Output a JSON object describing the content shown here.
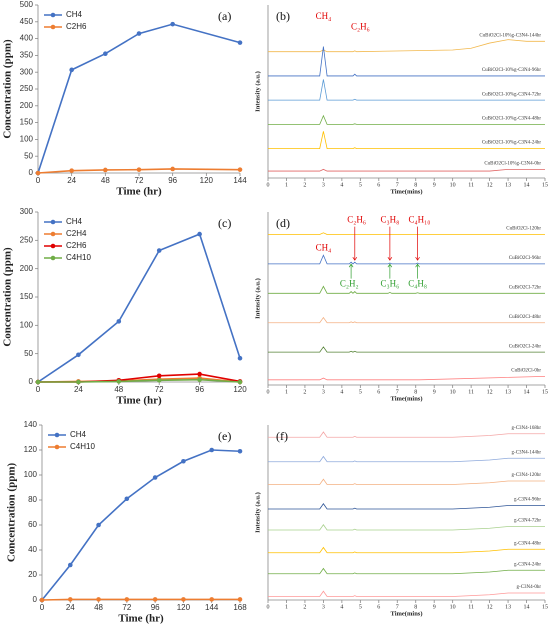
{
  "chart_data": [
    {
      "type": "line",
      "panel_label": "(a)",
      "x_label": "Time (hr)",
      "y_label": "Concentration (ppm)",
      "x": [
        0,
        24,
        48,
        72,
        96,
        144
      ],
      "series": [
        {
          "name": "CH4",
          "color": "#4472c4",
          "values": [
            0,
            307,
            355,
            415,
            443,
            388
          ]
        },
        {
          "name": "C2H6",
          "color": "#ed7d31",
          "values": [
            0,
            7,
            9,
            10,
            12,
            10
          ]
        }
      ],
      "xlim": [
        0,
        144
      ],
      "xticks": [
        0,
        24,
        48,
        72,
        96,
        120,
        144
      ],
      "ylim": [
        0,
        500
      ],
      "yticks": [
        0,
        50,
        100,
        150,
        200,
        250,
        300,
        350,
        400,
        450,
        500
      ],
      "markers": true,
      "legend": "upper-left"
    },
    {
      "type": "line",
      "panel_label": "(b)",
      "x_label": "Time(mins)",
      "y_label": "Intensity (a.u.)",
      "x": [
        0,
        2.8,
        3,
        3.2,
        4.6,
        4.7,
        4.8,
        10,
        11,
        12,
        13,
        14,
        15
      ],
      "series": [
        {
          "name": "CuBiO2Cl-10%g-C3N4-144hr",
          "color": "#f2b94f",
          "values": [
            73,
            73,
            74,
            73,
            73,
            73.5,
            73,
            74,
            75,
            78,
            80,
            79,
            79
          ]
        },
        {
          "name": "CuBiO2Cl-10%g-C3N4-96hr",
          "color": "#4472c4",
          "values": [
            59,
            59,
            76,
            59,
            59,
            60,
            59,
            59,
            59,
            59,
            59,
            59,
            59
          ]
        },
        {
          "name": "CuBiO2Cl-10%g-C3N4-72hr",
          "color": "#5b9bd5",
          "values": [
            45,
            45,
            57,
            45,
            45,
            45.5,
            45,
            45,
            45,
            45,
            45,
            45,
            45
          ]
        },
        {
          "name": "CuBiO2Cl-10%g-C3N4-48hr",
          "color": "#70ad47",
          "values": [
            31,
            31,
            36,
            31,
            31,
            31.3,
            31,
            31,
            31,
            31,
            31,
            31,
            31
          ]
        },
        {
          "name": "CuBiO2Cl-10%g-C3N4-24hr",
          "color": "#ffc000",
          "values": [
            17,
            17,
            27,
            17,
            17,
            17.5,
            17,
            17,
            17,
            17,
            17,
            17,
            17
          ]
        },
        {
          "name": "CuBiO2Cl-10%g-C3N4-0hr",
          "color": "#e06666",
          "values": [
            4,
            4,
            5,
            4,
            4,
            4,
            4,
            4,
            4,
            4,
            5,
            5,
            5
          ]
        }
      ],
      "xlim": [
        0,
        15
      ],
      "xticks": [
        0,
        1,
        2,
        3,
        4,
        5,
        6,
        7,
        8,
        9,
        10,
        11,
        12,
        13,
        14,
        15
      ],
      "ylim": [
        0,
        100
      ],
      "markers": false,
      "legend": "inline",
      "annotations": [
        {
          "text": "CH₄",
          "color": "#e00000"
        },
        {
          "text": "C₂H₆",
          "color": "#e00000"
        }
      ]
    },
    {
      "type": "line",
      "panel_label": "(c)",
      "x_label": "Time (hr)",
      "y_label": "Concentration (ppm)",
      "x": [
        0,
        24,
        48,
        72,
        96,
        120
      ],
      "series": [
        {
          "name": "CH4",
          "color": "#4472c4",
          "values": [
            0,
            48,
            107,
            232,
            261,
            42
          ]
        },
        {
          "name": "C2H4",
          "color": "#ed7d31",
          "values": [
            0,
            1,
            2,
            5,
            7,
            0
          ]
        },
        {
          "name": "C2H6",
          "color": "#e00000",
          "values": [
            0,
            0,
            3,
            11,
            14,
            1
          ]
        },
        {
          "name": "C4H10",
          "color": "#70ad47",
          "values": [
            0,
            0,
            1,
            3,
            4,
            0
          ]
        }
      ],
      "xlim": [
        0,
        120
      ],
      "xticks": [
        0,
        24,
        48,
        72,
        96,
        120
      ],
      "ylim": [
        0,
        300
      ],
      "yticks": [
        0,
        50,
        100,
        150,
        200,
        250,
        300
      ],
      "markers": true,
      "legend": "upper-left"
    },
    {
      "type": "line",
      "panel_label": "(d)",
      "x_label": "Time(mins)",
      "y_label": "Intensity (a.u.)",
      "x": [
        0,
        2.8,
        3,
        3.2,
        4.4,
        4.5,
        4.6,
        4.7,
        4.8,
        6.5,
        6.6,
        6.7,
        8,
        8.1,
        8.2,
        15
      ],
      "series": [
        {
          "name": "CuBiO2Cl-120hr",
          "color": "#ffc000",
          "values": [
            87,
            87,
            88,
            87,
            87,
            87,
            87,
            87,
            87,
            87,
            87,
            87,
            87,
            87,
            87,
            87
          ]
        },
        {
          "name": "CuBiO2Cl-96hr",
          "color": "#4472c4",
          "values": [
            70,
            70,
            75,
            70,
            70,
            71,
            70,
            71,
            70,
            70,
            70.5,
            70,
            70,
            70.5,
            70,
            70
          ]
        },
        {
          "name": "CuBiO2Cl-72hr",
          "color": "#70ad47",
          "values": [
            53,
            53,
            57,
            53,
            53,
            54,
            53,
            54,
            53,
            53,
            53.5,
            53,
            53,
            53.3,
            53,
            53
          ]
        },
        {
          "name": "CuBiO2Cl-48hr",
          "color": "#f4b183",
          "values": [
            36,
            36,
            39,
            36,
            36,
            36.5,
            36,
            36.5,
            36,
            36,
            36,
            36,
            36,
            36,
            36,
            36
          ]
        },
        {
          "name": "CuBiO2Cl-24hr",
          "color": "#548235",
          "values": [
            19,
            19,
            22,
            19,
            19,
            19.5,
            19,
            19.5,
            19,
            19,
            19,
            19,
            19,
            19,
            19,
            19
          ]
        },
        {
          "name": "CuBiO2Cl-0hr",
          "color": "#ff7f7f",
          "values": [
            3,
            3,
            4,
            3,
            3,
            3,
            3,
            3,
            3,
            3,
            3,
            3,
            3,
            3,
            3,
            5
          ]
        }
      ],
      "xlim": [
        0,
        15
      ],
      "xticks": [
        0,
        1,
        2,
        3,
        4,
        5,
        6,
        7,
        8,
        9,
        10,
        11,
        12,
        13,
        14,
        15
      ],
      "ylim": [
        0,
        100
      ],
      "markers": false,
      "legend": "inline",
      "annotations": [
        {
          "text": "CH₄",
          "color": "#e00000"
        },
        {
          "text": "C₂H₆",
          "color": "#e00000"
        },
        {
          "text": "C₃H₈",
          "color": "#e00000"
        },
        {
          "text": "C₄H₁₀",
          "color": "#e00000"
        },
        {
          "text": "C₂H₂",
          "color": "#2e9e2e"
        },
        {
          "text": "C₃H₆",
          "color": "#2e9e2e"
        },
        {
          "text": "C₄H₈",
          "color": "#2e9e2e"
        }
      ]
    },
    {
      "type": "line",
      "panel_label": "(e)",
      "x_label": "Time (hr)",
      "y_label": "Concentration (ppm)",
      "x": [
        0,
        24,
        48,
        72,
        96,
        120,
        144,
        168
      ],
      "series": [
        {
          "name": "CH4",
          "color": "#4472c4",
          "values": [
            0,
            28,
            60,
            81,
            98,
            111,
            120,
            119
          ]
        },
        {
          "name": "C4H10",
          "color": "#ed7d31",
          "values": [
            0,
            0.5,
            0.5,
            0.5,
            0.5,
            0.5,
            0.5,
            0.5
          ]
        }
      ],
      "xlim": [
        0,
        168
      ],
      "xticks": [
        0,
        24,
        48,
        72,
        96,
        120,
        144,
        168
      ],
      "ylim": [
        0,
        140
      ],
      "yticks": [
        0,
        20,
        40,
        60,
        80,
        100,
        120,
        140
      ],
      "markers": true,
      "legend": "upper-left"
    },
    {
      "type": "line",
      "panel_label": "(f)",
      "x_label": "Time(mins)",
      "y_label": "Intensity (a.u.)",
      "x": [
        0,
        2.8,
        3,
        3.2,
        4.6,
        4.7,
        4.8,
        10,
        11,
        12,
        13,
        14,
        15
      ],
      "series": [
        {
          "name": "g-C3N4-168hr",
          "color": "#f4a6a6",
          "values": [
            93,
            93,
            96,
            93,
            93,
            93.5,
            93,
            93,
            93.5,
            94,
            95,
            95,
            95
          ]
        },
        {
          "name": "g-C3N4-144hr",
          "color": "#8faadc",
          "values": [
            79,
            79,
            82,
            79,
            79,
            79.5,
            79,
            79,
            79.5,
            80,
            81,
            81,
            81
          ]
        },
        {
          "name": "g-C3N4-120hr",
          "color": "#f4b183",
          "values": [
            66,
            66,
            69,
            66,
            66,
            66.5,
            66,
            66,
            66.5,
            67,
            68,
            68,
            68
          ]
        },
        {
          "name": "g-C3N4-96hr",
          "color": "#2f5597",
          "values": [
            52,
            52,
            55,
            52,
            52,
            52.5,
            52,
            52,
            52.5,
            53,
            54,
            54,
            54
          ]
        },
        {
          "name": "g-C3N4-72hr",
          "color": "#a9d18e",
          "values": [
            40,
            40,
            43,
            40,
            40,
            40.5,
            40,
            40,
            40.5,
            41,
            42,
            42,
            42
          ]
        },
        {
          "name": "g-C3N4-48hr",
          "color": "#ffc000",
          "values": [
            27,
            27,
            30,
            27,
            27,
            27.5,
            27,
            27,
            27.5,
            28,
            29,
            29,
            29
          ]
        },
        {
          "name": "g-C3N4-24hr",
          "color": "#70ad47",
          "values": [
            15,
            15,
            18,
            15,
            15,
            15.5,
            15,
            15,
            15.5,
            16,
            17,
            17,
            17
          ]
        },
        {
          "name": "g-C3N4-0hr",
          "color": "#ff9999",
          "values": [
            2,
            2,
            5,
            2,
            2,
            2.5,
            2,
            2,
            2.5,
            3,
            4,
            4,
            4
          ]
        }
      ],
      "xlim": [
        0,
        15
      ],
      "xticks": [
        0,
        1,
        2,
        3,
        4,
        5,
        6,
        7,
        8,
        9,
        10,
        11,
        12,
        13,
        14,
        15
      ],
      "ylim": [
        0,
        100
      ],
      "markers": false,
      "legend": "inline"
    }
  ]
}
